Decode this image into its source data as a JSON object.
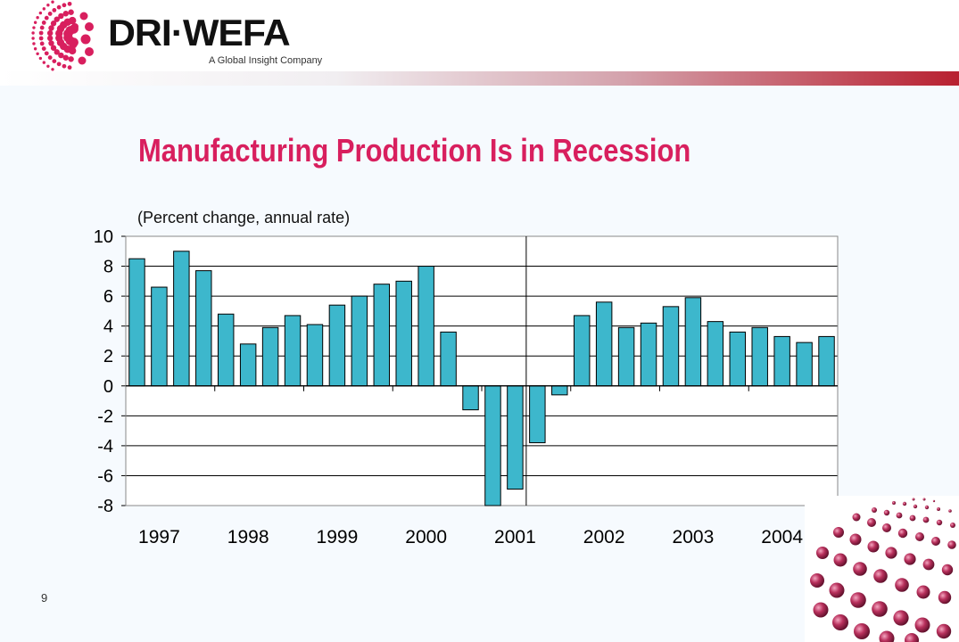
{
  "logo": {
    "name": "DRI·WEFA",
    "tagline": "A Global Insight Company"
  },
  "slide": {
    "title": "Manufacturing Production Is in Recession",
    "number": "9"
  },
  "colors": {
    "title": "#D81F5E",
    "bar": "#3DB7CC",
    "band_start": "#FFFFFF",
    "band_end": "#B82030"
  },
  "chart_data": {
    "type": "bar",
    "subtitle": "(Percent change, annual rate)",
    "xlabel": "",
    "ylabel": "",
    "ylim": [
      -8,
      10
    ],
    "yticks": [
      10,
      8,
      6,
      4,
      2,
      0,
      -2,
      -4,
      -6,
      -8
    ],
    "year_labels": [
      "1997",
      "1998",
      "1999",
      "2000",
      "2001",
      "2002",
      "2003",
      "2004"
    ],
    "grid": true,
    "legend": "none",
    "series": [
      {
        "values": [
          8.5,
          6.6,
          9.0,
          7.7,
          4.8,
          2.8,
          3.9,
          4.7,
          4.1,
          5.4,
          6.0,
          6.8,
          7.0,
          8.0,
          3.6,
          -1.6,
          -8.0,
          -6.9,
          -3.8,
          -0.6,
          4.7,
          5.6,
          3.9,
          4.2,
          5.3,
          5.9,
          4.3,
          3.6,
          3.9,
          3.3,
          2.9,
          3.3
        ]
      }
    ]
  }
}
